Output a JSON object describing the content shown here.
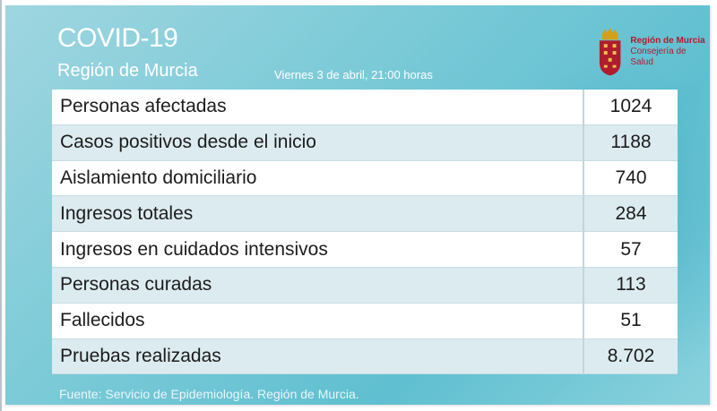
{
  "header": {
    "title": "COVID-19",
    "subtitle": "Región de Murcia",
    "date": "Viernes 3 de abril, 21:00 horas"
  },
  "logo": {
    "line1": "Región de Murcia",
    "line2": "Consejería de Salud",
    "icon": "coat-of-arms-icon",
    "color": "#b01c2e"
  },
  "table": {
    "rows": [
      {
        "label": "Personas afectadas",
        "value": "1024"
      },
      {
        "label": "Casos positivos desde el inicio",
        "value": "1188"
      },
      {
        "label": "Aislamiento domiciliario",
        "value": "740"
      },
      {
        "label": "Ingresos totales",
        "value": "284"
      },
      {
        "label": "Ingresos en cuidados intensivos",
        "value": "57"
      },
      {
        "label": "Personas curadas",
        "value": "113"
      },
      {
        "label": "Fallecidos",
        "value": "51"
      },
      {
        "label": "Pruebas realizadas",
        "value": "8.702"
      }
    ]
  },
  "footer": {
    "source": "Fuente: Servicio de Epidemiología. Región de Murcia."
  }
}
